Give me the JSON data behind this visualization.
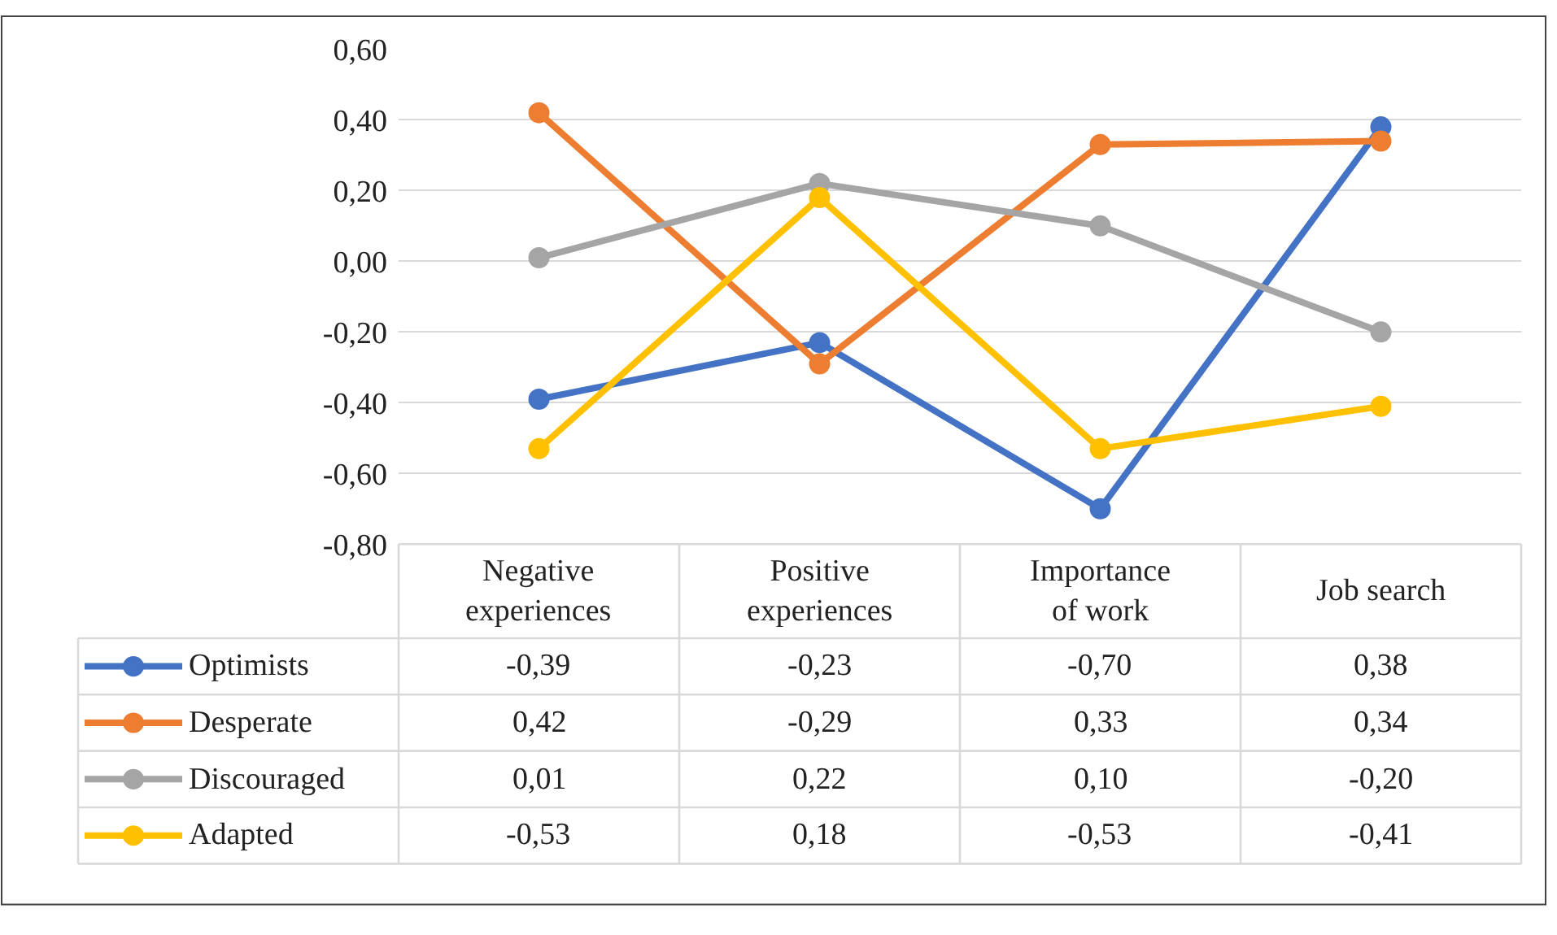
{
  "chart_data": {
    "type": "line",
    "categories": [
      "Negative experiences",
      "Positive experiences",
      "Importance of work",
      "Job search"
    ],
    "series": [
      {
        "name": "Optimists",
        "color": "#4472c4",
        "values": [
          -0.39,
          -0.23,
          -0.7,
          0.38
        ],
        "value_labels": [
          "-0,39",
          "-0,23",
          "-0,70",
          "0,38"
        ]
      },
      {
        "name": "Desperate",
        "color": "#ed7d31",
        "values": [
          0.42,
          -0.29,
          0.33,
          0.34
        ],
        "value_labels": [
          "0,42",
          "-0,29",
          "0,33",
          "0,34"
        ]
      },
      {
        "name": "Discouraged",
        "color": "#a5a5a5",
        "values": [
          0.01,
          0.22,
          0.1,
          -0.2
        ],
        "value_labels": [
          "0,01",
          "0,22",
          "0,10",
          "-0,20"
        ]
      },
      {
        "name": "Adapted",
        "color": "#ffc000",
        "values": [
          -0.53,
          0.18,
          -0.53,
          -0.41
        ],
        "value_labels": [
          "-0,53",
          "0,18",
          "-0,53",
          "-0,41"
        ]
      }
    ],
    "ylim": [
      -0.8,
      0.6
    ],
    "yticks": [
      {
        "value": -0.8,
        "label": "-0,80"
      },
      {
        "value": -0.6,
        "label": "-0,60"
      },
      {
        "value": -0.4,
        "label": "-0,40"
      },
      {
        "value": -0.2,
        "label": "-0,20"
      },
      {
        "value": 0,
        "label": "0,00"
      },
      {
        "value": 0.2,
        "label": "0,20"
      },
      {
        "value": 0.4,
        "label": "0,40"
      },
      {
        "value": 0.6,
        "label": "0,60"
      }
    ],
    "grid": "y",
    "legend": "bottom left",
    "marker": "circle",
    "line_style": "solid"
  }
}
